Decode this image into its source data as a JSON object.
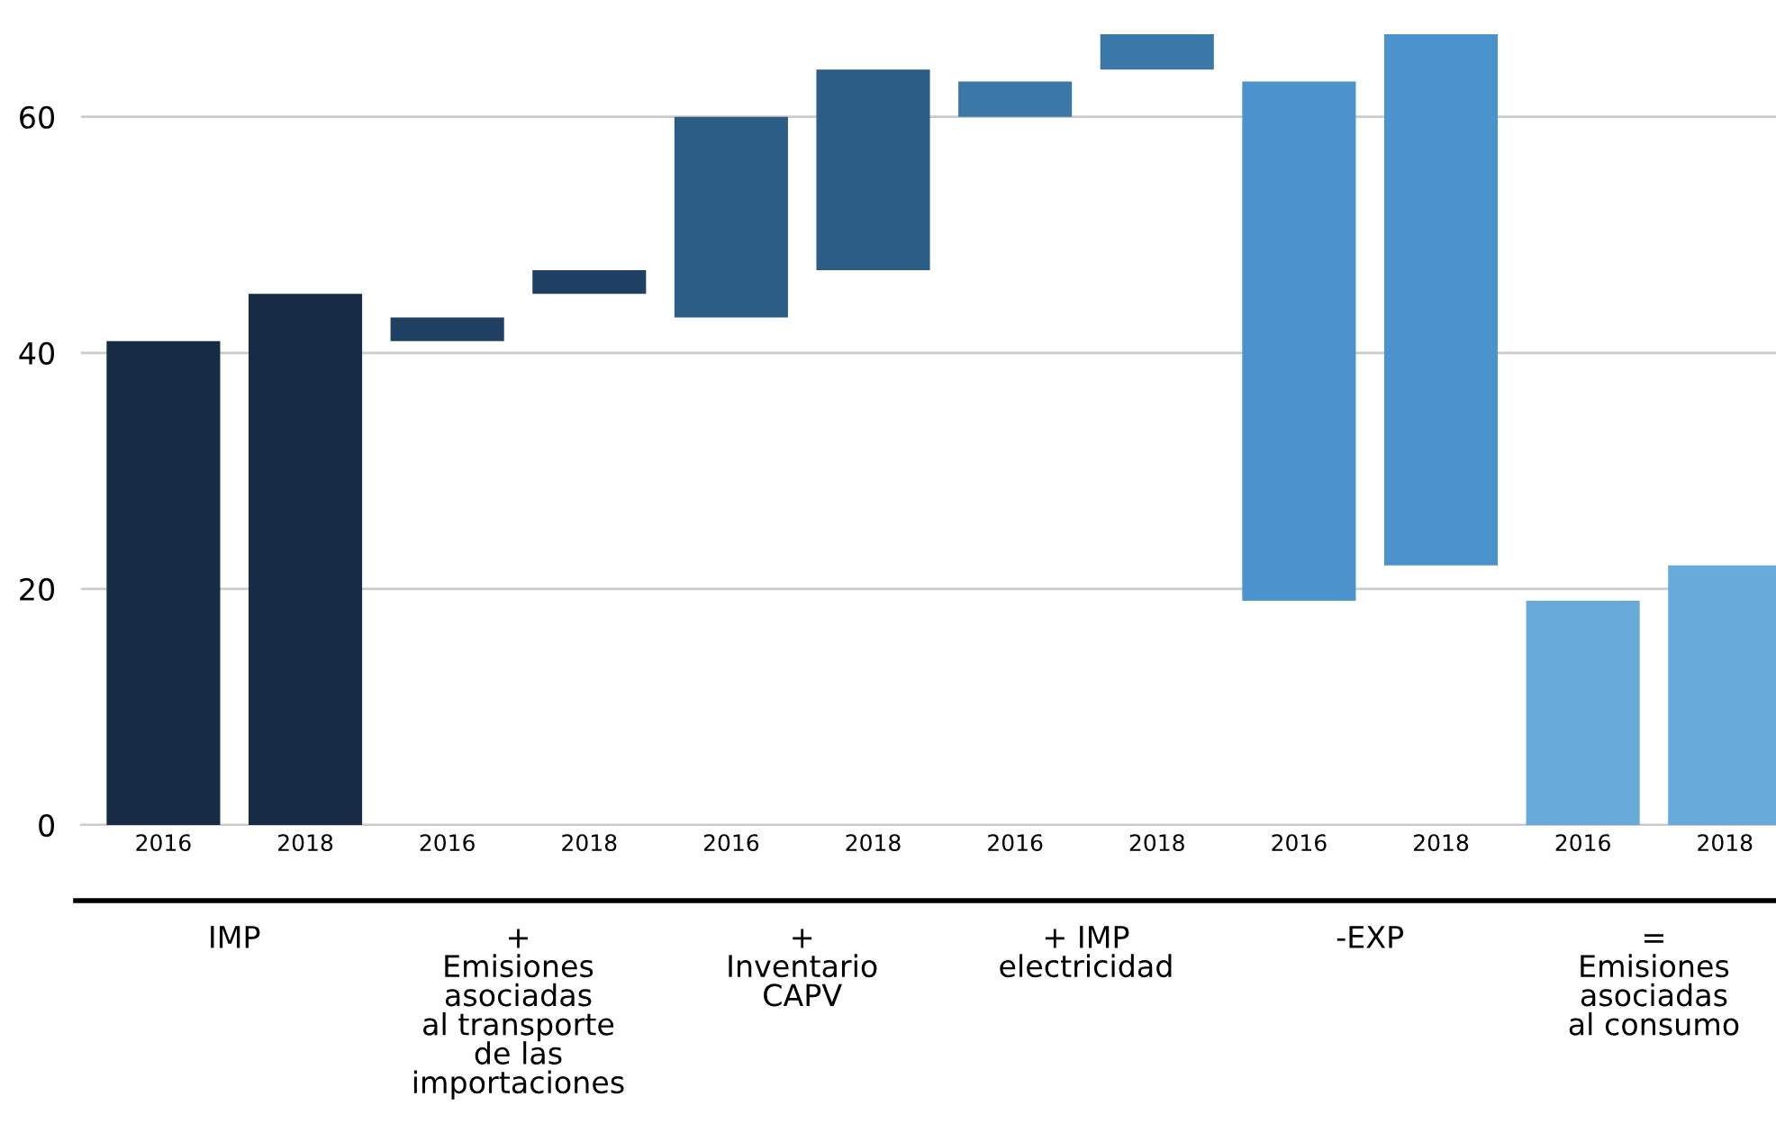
{
  "chart_data": {
    "type": "bar",
    "categories": [
      "2016",
      "2018",
      "2016",
      "2018",
      "2016",
      "2018",
      "2016",
      "2018",
      "2016",
      "2018",
      "2016",
      "2018"
    ],
    "values": [
      41,
      45,
      2,
      2,
      17,
      17,
      3,
      3,
      -44,
      -45,
      19,
      22
    ],
    "base": [
      0,
      0,
      41,
      45,
      43,
      47,
      60,
      64,
      63,
      67,
      0,
      0
    ],
    "colors": [
      "#172b45",
      "#172b45",
      "#1f3f63",
      "#1f3f63",
      "#2c5d87",
      "#2c5d87",
      "#3a78a8",
      "#3a78a8",
      "#4a93cc",
      "#4a93cc",
      "#67a9d9",
      "#67a9d9"
    ],
    "annotations": [
      "IMP",
      "+\nEmisiones\nasociadas\nal transporte\nde las\nimportaciones",
      "+\nInventario\nCAPV",
      "+ IMP\nelectricidad",
      "-EXP",
      "=\nEmisiones\nasociadas\nal consumo"
    ],
    "ylim": [
      0,
      67
    ],
    "yticks": [
      0,
      20,
      40,
      60
    ],
    "grid": "y",
    "legend": false
  }
}
